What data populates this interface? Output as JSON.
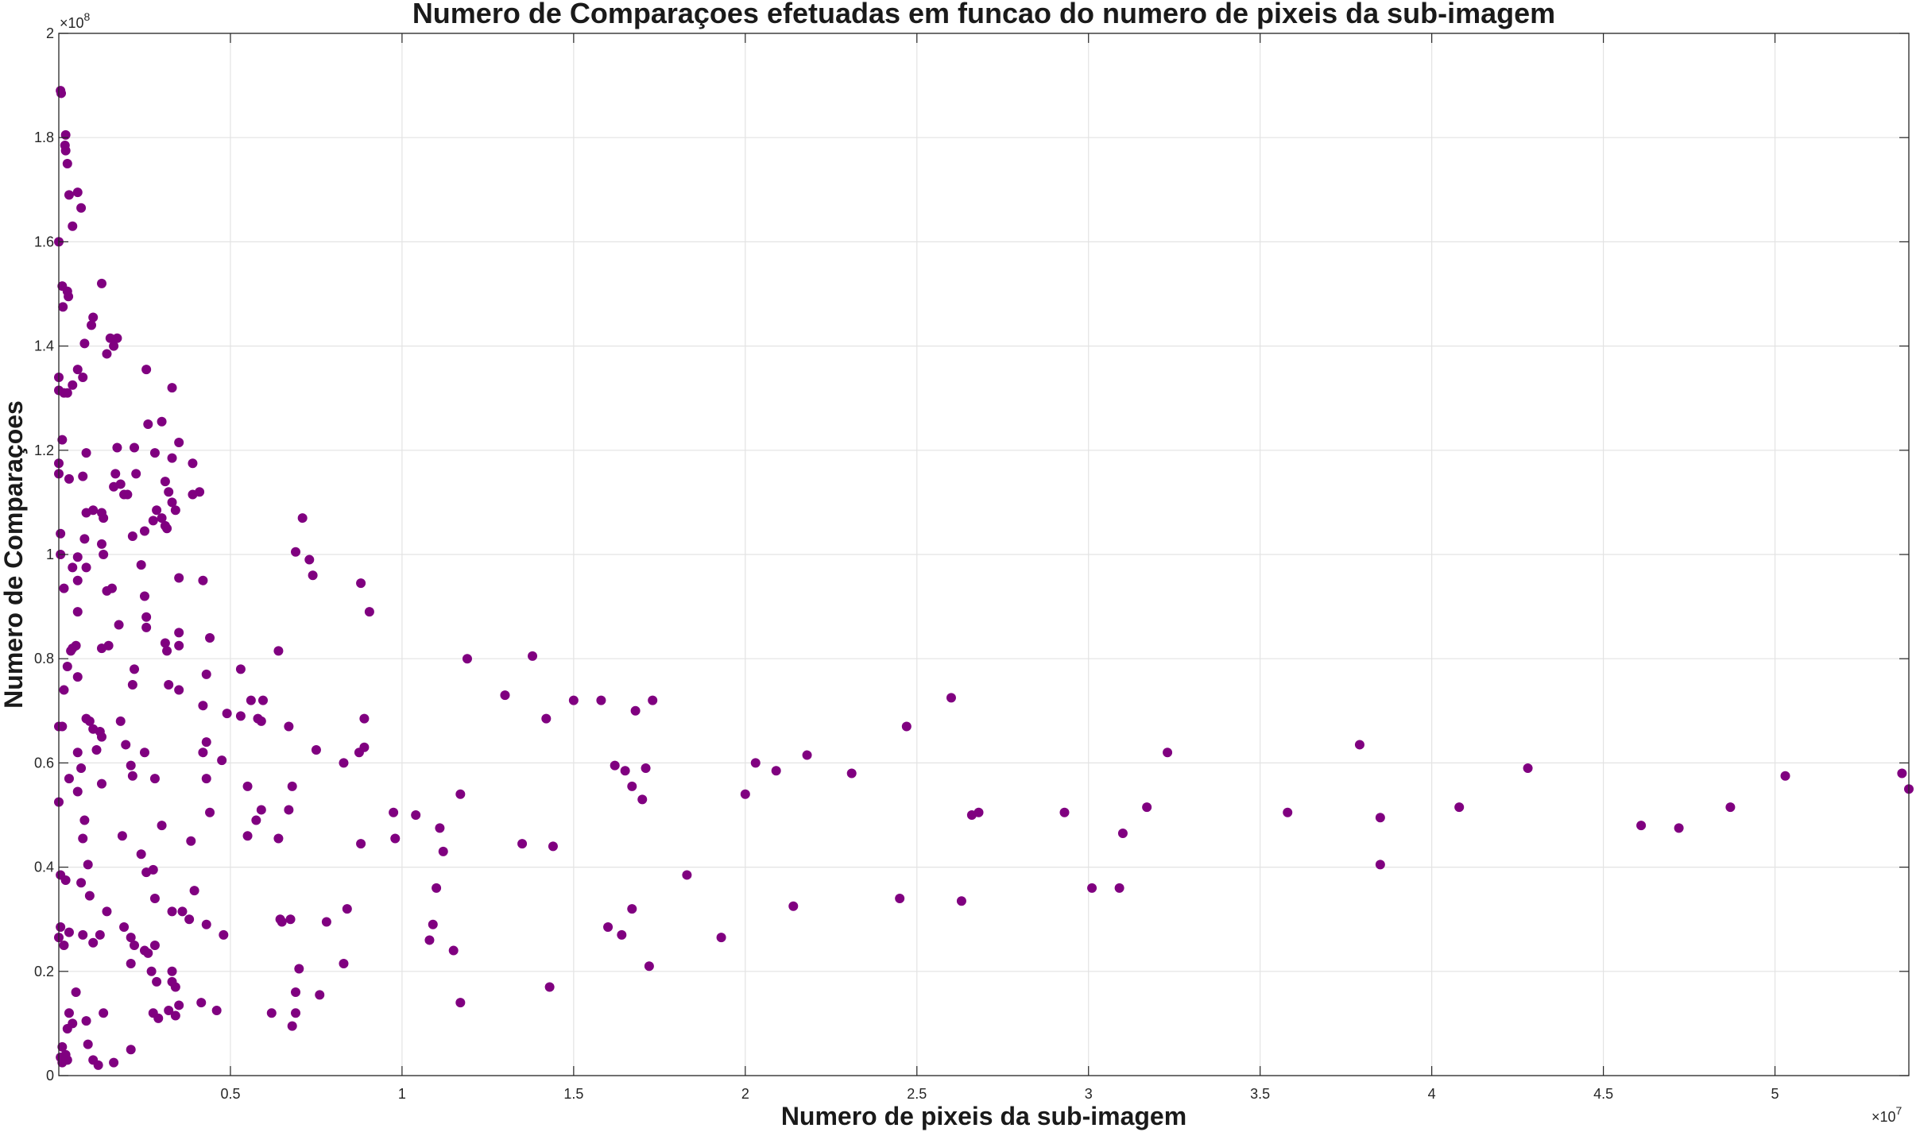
{
  "chart_data": {
    "type": "scatter",
    "title": "Numero de Comparaçoes efetuadas em funcao do numero de pixeis da sub-imagem",
    "xlabel": "Numero de pixeis da sub-imagem",
    "ylabel": "Numero de Comparaçoes",
    "x_multiplier_label": "×10",
    "x_multiplier_exp": "7",
    "y_multiplier_label": "×10",
    "y_multiplier_exp": "8",
    "x_scale": 10000000,
    "y_scale": 100000000,
    "xlim": [
      0,
      5.39
    ],
    "ylim": [
      0,
      2
    ],
    "xticks": [
      "0.5",
      "1",
      "1.5",
      "2",
      "2.5",
      "3",
      "3.5",
      "4",
      "4.5",
      "5"
    ],
    "yticks": [
      "0",
      "0.2",
      "0.4",
      "0.6",
      "0.8",
      "1",
      "1.2",
      "1.4",
      "1.6",
      "1.8",
      "2"
    ],
    "grid": true,
    "marker_color": "#800080",
    "points": [
      [
        0.005,
        1.89
      ],
      [
        0.007,
        1.885
      ],
      [
        0.02,
        1.805
      ],
      [
        0.018,
        1.785
      ],
      [
        0.02,
        1.775
      ],
      [
        0.025,
        1.75
      ],
      [
        0.03,
        1.69
      ],
      [
        0.055,
        1.695
      ],
      [
        0.065,
        1.665
      ],
      [
        0.04,
        1.63
      ],
      [
        0.0,
        1.6
      ],
      [
        0.01,
        1.515
      ],
      [
        0.025,
        1.505
      ],
      [
        0.028,
        1.495
      ],
      [
        0.012,
        1.475
      ],
      [
        0.1,
        1.455
      ],
      [
        0.095,
        1.44
      ],
      [
        0.075,
        1.405
      ],
      [
        0.125,
        1.52
      ],
      [
        0.15,
        1.415
      ],
      [
        0.17,
        1.415
      ],
      [
        0.16,
        1.4
      ],
      [
        0.14,
        1.385
      ],
      [
        0.0,
        1.34
      ],
      [
        0.055,
        1.355
      ],
      [
        0.07,
        1.34
      ],
      [
        0.04,
        1.325
      ],
      [
        0.025,
        1.31
      ],
      [
        0.0,
        1.315
      ],
      [
        0.015,
        1.31
      ],
      [
        0.255,
        1.355
      ],
      [
        0.33,
        1.32
      ],
      [
        0.26,
        1.25
      ],
      [
        0.3,
        1.255
      ],
      [
        0.01,
        1.22
      ],
      [
        0.0,
        1.175
      ],
      [
        0.0,
        1.155
      ],
      [
        0.03,
        1.145
      ],
      [
        0.08,
        1.195
      ],
      [
        0.07,
        1.15
      ],
      [
        0.17,
        1.205
      ],
      [
        0.165,
        1.155
      ],
      [
        0.16,
        1.13
      ],
      [
        0.22,
        1.205
      ],
      [
        0.225,
        1.155
      ],
      [
        0.18,
        1.135
      ],
      [
        0.19,
        1.115
      ],
      [
        0.2,
        1.115
      ],
      [
        0.28,
        1.195
      ],
      [
        0.31,
        1.14
      ],
      [
        0.33,
        1.185
      ],
      [
        0.35,
        1.215
      ],
      [
        0.39,
        1.175
      ],
      [
        0.41,
        1.12
      ],
      [
        0.32,
        1.12
      ],
      [
        0.33,
        1.1
      ],
      [
        0.34,
        1.085
      ],
      [
        0.39,
        1.115
      ],
      [
        0.08,
        1.08
      ],
      [
        0.1,
        1.085
      ],
      [
        0.125,
        1.08
      ],
      [
        0.13,
        1.07
      ],
      [
        0.285,
        1.085
      ],
      [
        0.275,
        1.065
      ],
      [
        0.3,
        1.07
      ],
      [
        0.31,
        1.055
      ],
      [
        0.315,
        1.05
      ],
      [
        0.25,
        1.045
      ],
      [
        0.215,
        1.035
      ],
      [
        0.005,
        1.04
      ],
      [
        0.075,
        1.03
      ],
      [
        0.125,
        1.02
      ],
      [
        0.13,
        1.0
      ],
      [
        0.005,
        1.0
      ],
      [
        0.055,
        0.995
      ],
      [
        0.04,
        0.975
      ],
      [
        0.08,
        0.975
      ],
      [
        0.24,
        0.98
      ],
      [
        0.71,
        1.07
      ],
      [
        0.69,
        1.005
      ],
      [
        0.73,
        0.99
      ],
      [
        0.74,
        0.96
      ],
      [
        0.055,
        0.95
      ],
      [
        0.015,
        0.935
      ],
      [
        0.155,
        0.935
      ],
      [
        0.14,
        0.93
      ],
      [
        0.35,
        0.955
      ],
      [
        0.42,
        0.95
      ],
      [
        0.88,
        0.945
      ],
      [
        0.905,
        0.89
      ],
      [
        0.055,
        0.89
      ],
      [
        0.25,
        0.92
      ],
      [
        0.255,
        0.88
      ],
      [
        0.255,
        0.86
      ],
      [
        0.175,
        0.865
      ],
      [
        0.35,
        0.85
      ],
      [
        0.44,
        0.84
      ],
      [
        0.04,
        0.82
      ],
      [
        0.05,
        0.825
      ],
      [
        0.035,
        0.815
      ],
      [
        0.125,
        0.82
      ],
      [
        0.145,
        0.825
      ],
      [
        0.31,
        0.83
      ],
      [
        0.315,
        0.815
      ],
      [
        0.35,
        0.825
      ],
      [
        0.64,
        0.815
      ],
      [
        0.025,
        0.785
      ],
      [
        0.22,
        0.78
      ],
      [
        0.055,
        0.765
      ],
      [
        0.015,
        0.74
      ],
      [
        0.215,
        0.75
      ],
      [
        0.32,
        0.75
      ],
      [
        0.35,
        0.74
      ],
      [
        0.43,
        0.77
      ],
      [
        0.53,
        0.78
      ],
      [
        0.42,
        0.71
      ],
      [
        0.56,
        0.72
      ],
      [
        0.595,
        0.72
      ],
      [
        1.19,
        0.8
      ],
      [
        1.38,
        0.805
      ],
      [
        1.3,
        0.73
      ],
      [
        1.5,
        0.72
      ],
      [
        1.58,
        0.72
      ],
      [
        1.73,
        0.72
      ],
      [
        1.68,
        0.7
      ],
      [
        1.42,
        0.685
      ],
      [
        2.6,
        0.725
      ],
      [
        0.0,
        0.67
      ],
      [
        0.01,
        0.67
      ],
      [
        0.08,
        0.685
      ],
      [
        0.09,
        0.68
      ],
      [
        0.1,
        0.665
      ],
      [
        0.12,
        0.66
      ],
      [
        0.125,
        0.65
      ],
      [
        0.18,
        0.68
      ],
      [
        0.49,
        0.695
      ],
      [
        0.53,
        0.69
      ],
      [
        0.58,
        0.685
      ],
      [
        0.59,
        0.68
      ],
      [
        0.67,
        0.67
      ],
      [
        0.89,
        0.685
      ],
      [
        2.47,
        0.67
      ],
      [
        0.055,
        0.62
      ],
      [
        0.11,
        0.625
      ],
      [
        0.065,
        0.59
      ],
      [
        0.195,
        0.635
      ],
      [
        0.25,
        0.62
      ],
      [
        0.21,
        0.595
      ],
      [
        0.42,
        0.62
      ],
      [
        0.43,
        0.64
      ],
      [
        0.475,
        0.605
      ],
      [
        0.75,
        0.625
      ],
      [
        0.83,
        0.6
      ],
      [
        0.875,
        0.62
      ],
      [
        0.89,
        0.63
      ],
      [
        0.03,
        0.57
      ],
      [
        0.0,
        0.525
      ],
      [
        0.125,
        0.56
      ],
      [
        0.055,
        0.545
      ],
      [
        0.215,
        0.575
      ],
      [
        0.28,
        0.57
      ],
      [
        0.43,
        0.57
      ],
      [
        0.55,
        0.555
      ],
      [
        0.68,
        0.555
      ],
      [
        0.59,
        0.51
      ],
      [
        0.575,
        0.49
      ],
      [
        0.55,
        0.46
      ],
      [
        0.64,
        0.455
      ],
      [
        0.67,
        0.51
      ],
      [
        1.62,
        0.595
      ],
      [
        1.65,
        0.585
      ],
      [
        1.67,
        0.555
      ],
      [
        1.7,
        0.53
      ],
      [
        1.71,
        0.59
      ],
      [
        2.03,
        0.6
      ],
      [
        2.09,
        0.585
      ],
      [
        2.18,
        0.615
      ],
      [
        2.0,
        0.54
      ],
      [
        2.31,
        0.58
      ],
      [
        3.23,
        0.62
      ],
      [
        3.79,
        0.635
      ],
      [
        4.28,
        0.59
      ],
      [
        5.03,
        0.575
      ],
      [
        5.37,
        0.58
      ],
      [
        5.39,
        0.55
      ],
      [
        0.075,
        0.49
      ],
      [
        0.07,
        0.455
      ],
      [
        0.185,
        0.46
      ],
      [
        0.3,
        0.48
      ],
      [
        0.385,
        0.45
      ],
      [
        0.44,
        0.505
      ],
      [
        0.975,
        0.505
      ],
      [
        1.04,
        0.5
      ],
      [
        1.11,
        0.475
      ],
      [
        0.98,
        0.455
      ],
      [
        0.88,
        0.445
      ],
      [
        1.12,
        0.43
      ],
      [
        1.17,
        0.54
      ],
      [
        1.35,
        0.445
      ],
      [
        1.44,
        0.44
      ],
      [
        2.66,
        0.5
      ],
      [
        2.68,
        0.505
      ],
      [
        2.93,
        0.505
      ],
      [
        3.17,
        0.515
      ],
      [
        3.1,
        0.465
      ],
      [
        3.58,
        0.505
      ],
      [
        3.85,
        0.495
      ],
      [
        4.08,
        0.515
      ],
      [
        4.61,
        0.48
      ],
      [
        4.72,
        0.475
      ],
      [
        4.87,
        0.515
      ],
      [
        0.085,
        0.405
      ],
      [
        0.24,
        0.425
      ],
      [
        0.255,
        0.39
      ],
      [
        0.275,
        0.395
      ],
      [
        0.005,
        0.385
      ],
      [
        0.02,
        0.375
      ],
      [
        0.065,
        0.37
      ],
      [
        0.09,
        0.345
      ],
      [
        0.28,
        0.34
      ],
      [
        0.395,
        0.355
      ],
      [
        1.1,
        0.36
      ],
      [
        1.83,
        0.385
      ],
      [
        3.01,
        0.36
      ],
      [
        3.09,
        0.36
      ],
      [
        3.85,
        0.405
      ],
      [
        0.14,
        0.315
      ],
      [
        0.33,
        0.315
      ],
      [
        0.36,
        0.315
      ],
      [
        0.38,
        0.3
      ],
      [
        0.005,
        0.285
      ],
      [
        0.03,
        0.275
      ],
      [
        0.07,
        0.27
      ],
      [
        0.1,
        0.255
      ],
      [
        0.12,
        0.27
      ],
      [
        0.19,
        0.285
      ],
      [
        0.21,
        0.265
      ],
      [
        0.22,
        0.25
      ],
      [
        0.25,
        0.24
      ],
      [
        0.26,
        0.235
      ],
      [
        0.0,
        0.265
      ],
      [
        0.015,
        0.25
      ],
      [
        0.28,
        0.25
      ],
      [
        0.43,
        0.29
      ],
      [
        0.48,
        0.27
      ],
      [
        0.645,
        0.3
      ],
      [
        0.65,
        0.295
      ],
      [
        0.675,
        0.3
      ],
      [
        0.78,
        0.295
      ],
      [
        0.84,
        0.32
      ],
      [
        1.09,
        0.29
      ],
      [
        1.08,
        0.26
      ],
      [
        1.15,
        0.24
      ],
      [
        1.6,
        0.285
      ],
      [
        1.64,
        0.27
      ],
      [
        1.67,
        0.32
      ],
      [
        1.93,
        0.265
      ],
      [
        2.14,
        0.325
      ],
      [
        2.45,
        0.34
      ],
      [
        2.63,
        0.335
      ],
      [
        0.21,
        0.215
      ],
      [
        0.27,
        0.2
      ],
      [
        0.285,
        0.18
      ],
      [
        0.33,
        0.2
      ],
      [
        0.33,
        0.18
      ],
      [
        0.34,
        0.17
      ],
      [
        0.7,
        0.205
      ],
      [
        0.83,
        0.215
      ],
      [
        1.43,
        0.17
      ],
      [
        1.72,
        0.21
      ],
      [
        0.05,
        0.16
      ],
      [
        0.35,
        0.135
      ],
      [
        0.415,
        0.14
      ],
      [
        0.46,
        0.125
      ],
      [
        0.69,
        0.16
      ],
      [
        0.76,
        0.155
      ],
      [
        1.17,
        0.14
      ],
      [
        0.03,
        0.12
      ],
      [
        0.04,
        0.1
      ],
      [
        0.025,
        0.09
      ],
      [
        0.08,
        0.105
      ],
      [
        0.13,
        0.12
      ],
      [
        0.275,
        0.12
      ],
      [
        0.29,
        0.11
      ],
      [
        0.32,
        0.125
      ],
      [
        0.34,
        0.115
      ],
      [
        0.62,
        0.12
      ],
      [
        0.68,
        0.095
      ],
      [
        0.69,
        0.12
      ],
      [
        0.01,
        0.055
      ],
      [
        0.02,
        0.04
      ],
      [
        0.005,
        0.035
      ],
      [
        0.01,
        0.025
      ],
      [
        0.025,
        0.03
      ],
      [
        0.085,
        0.06
      ],
      [
        0.1,
        0.03
      ],
      [
        0.115,
        0.02
      ],
      [
        0.16,
        0.025
      ],
      [
        0.21,
        0.05
      ]
    ]
  }
}
